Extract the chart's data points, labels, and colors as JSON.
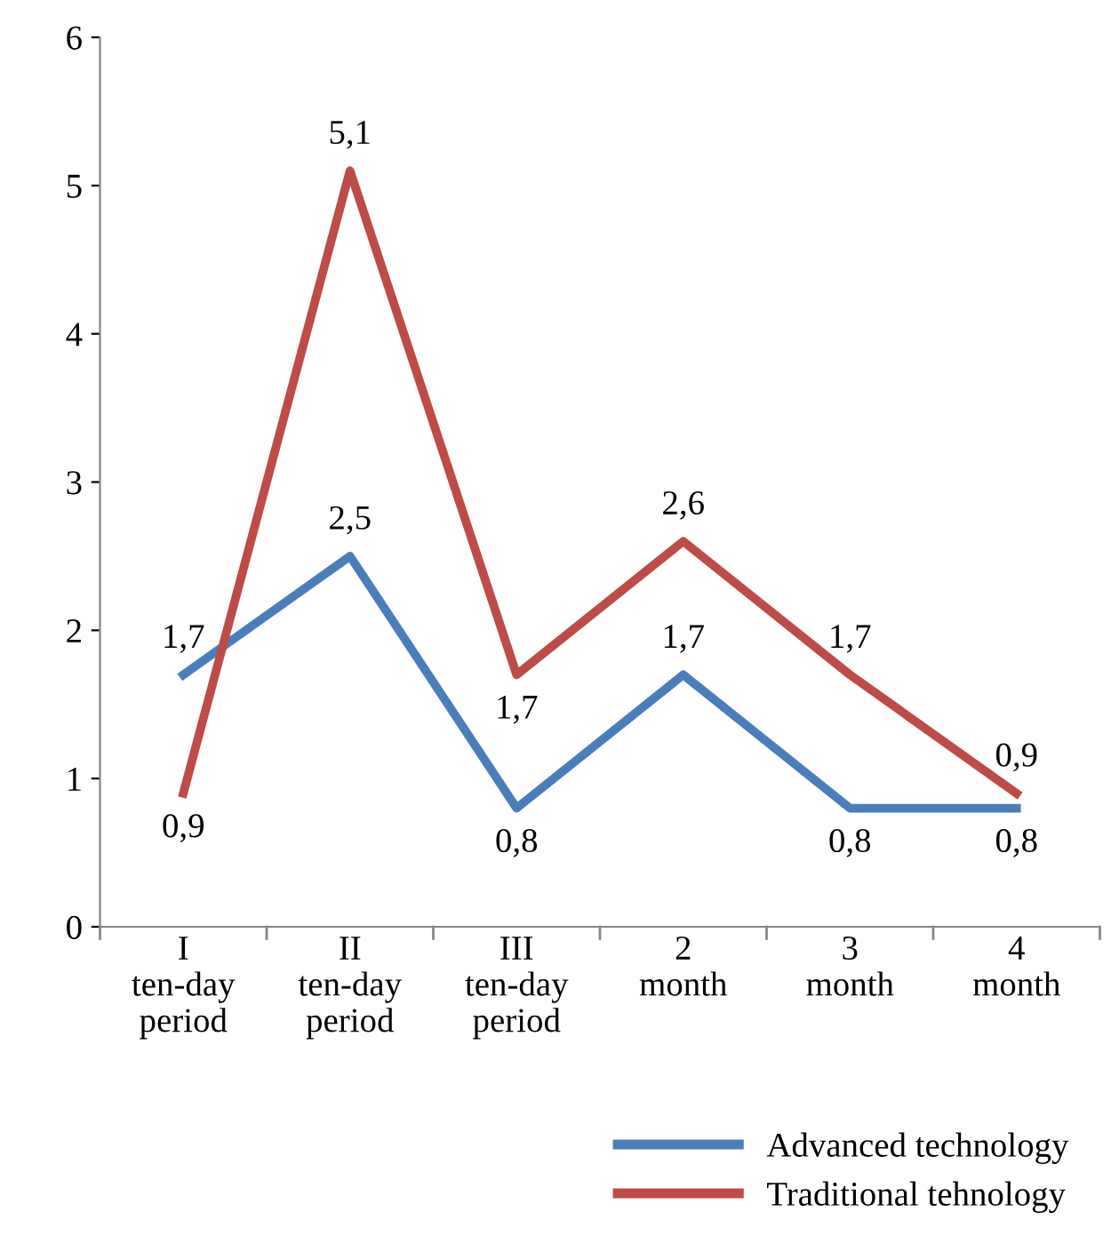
{
  "chart_data": {
    "type": "line",
    "categories": [
      "I\nten-day\nperiod",
      "II\nten-day\nperiod",
      "III\nten-day\nperiod",
      "2\nmonth",
      "3\nmonth",
      "4\nmonth"
    ],
    "series": [
      {
        "name": "Advanced technology",
        "color": "#4a7ebb",
        "values": [
          1.7,
          2.5,
          0.8,
          1.7,
          0.8,
          0.8
        ],
        "value_labels": [
          "1,7",
          "2,5",
          "0,8",
          "1,7",
          "0,8",
          "0,8"
        ]
      },
      {
        "name": "Traditional tehnology",
        "color": "#be4b48",
        "values": [
          0.9,
          5.1,
          1.7,
          2.6,
          1.7,
          0.9
        ],
        "value_labels": [
          "0,9",
          "5,1",
          "1,7",
          "2,6",
          "1,7",
          "0,9"
        ]
      }
    ],
    "ylim": [
      0,
      6
    ],
    "yticks": [
      0,
      1,
      2,
      3,
      4,
      5,
      6
    ],
    "grid": false,
    "legend": "bottom",
    "marker": "none",
    "line_style": "solid"
  }
}
